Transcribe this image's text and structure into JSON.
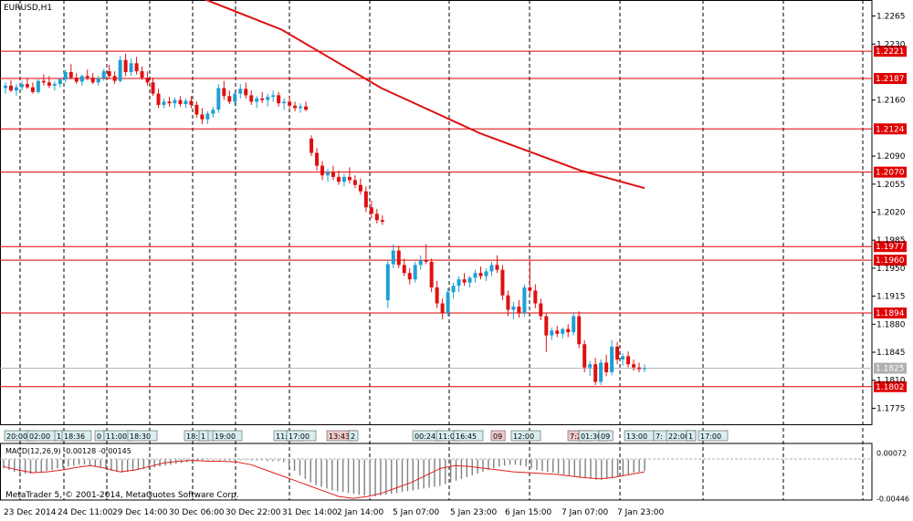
{
  "symbol_label": "EURUSD,H1",
  "macd_label": "MACD(12,26,9) -0.00128 -0.00145",
  "copyright": "MetaTrader 5, © 2001-2014, MetaQuotes Software Corp.",
  "colors": {
    "bull": "#1ea0d4",
    "bear": "#e01010",
    "level": "#e00000",
    "ma": "#dd1111",
    "grid": "#000000",
    "current": "#b0b0b0"
  },
  "chart_data": [
    {
      "type": "candlestick",
      "title": "",
      "ylim": [
        1.1755,
        1.2285
      ],
      "y_ticks": [
        "1.2265",
        "1.2230",
        "1.2160",
        "1.2090",
        "1.2055",
        "1.2020",
        "1.1985",
        "1.1950",
        "1.1915",
        "1.1880",
        "1.1845",
        "1.1810",
        "1.1775"
      ],
      "y_tick_values": [
        1.2265,
        1.223,
        1.216,
        1.209,
        1.2055,
        1.202,
        1.1985,
        1.195,
        1.1915,
        1.188,
        1.1845,
        1.181,
        1.1775
      ],
      "x_ticks": [
        "23 Dec 2014",
        "24 Dec 11:00",
        "29 Dec 14:00",
        "30 Dec 06:00",
        "30 Dec 22:00",
        "31 Dec 14:00",
        "2 Jan 14:00",
        "5 Jan 07:00",
        "5 Jan 23:00",
        "6 Jan 15:00",
        "7 Jan 07:00",
        "7 Jan 23:00"
      ],
      "levels": [
        {
          "value": 1.2221,
          "label": "1.2221"
        },
        {
          "value": 1.2187,
          "label": "1.2187"
        },
        {
          "value": 1.2124,
          "label": "1.2124"
        },
        {
          "value": 1.207,
          "label": "1.2070"
        },
        {
          "value": 1.1977,
          "label": "1.1977"
        },
        {
          "value": 1.196,
          "label": "1.1960"
        },
        {
          "value": 1.1894,
          "label": "1.1894"
        },
        {
          "value": 1.1802,
          "label": "1.1802"
        }
      ],
      "current_price": {
        "value": 1.1825,
        "label": "1.1825"
      },
      "moving_average": [
        {
          "i": 0,
          "v": 1.229
        },
        {
          "i": 60,
          "v": 1.2248
        },
        {
          "i": 130,
          "v": 1.2175
        },
        {
          "i": 200,
          "v": 1.2118
        },
        {
          "i": 270,
          "v": 1.2072
        },
        {
          "i": 315,
          "v": 1.205
        }
      ],
      "ohlc": [
        [
          1.2175,
          1.2182,
          1.2168,
          1.2178
        ],
        [
          1.2178,
          1.2185,
          1.217,
          1.2172
        ],
        [
          1.2172,
          1.218,
          1.2165,
          1.2176
        ],
        [
          1.2176,
          1.2184,
          1.2172,
          1.218
        ],
        [
          1.218,
          1.2188,
          1.2174,
          1.2176
        ],
        [
          1.2176,
          1.2182,
          1.2168,
          1.217
        ],
        [
          1.217,
          1.2186,
          1.2168,
          1.2184
        ],
        [
          1.2184,
          1.2192,
          1.2178,
          1.2182
        ],
        [
          1.2182,
          1.219,
          1.2175,
          1.2178
        ],
        [
          1.2178,
          1.2184,
          1.2172,
          1.218
        ],
        [
          1.218,
          1.2188,
          1.2176,
          1.2186
        ],
        [
          1.2186,
          1.2198,
          1.2182,
          1.2195
        ],
        [
          1.2195,
          1.2205,
          1.2186,
          1.2188
        ],
        [
          1.2188,
          1.2194,
          1.218,
          1.2183
        ],
        [
          1.2183,
          1.2192,
          1.2178,
          1.219
        ],
        [
          1.219,
          1.2198,
          1.2185,
          1.2188
        ],
        [
          1.2188,
          1.2194,
          1.218,
          1.2182
        ],
        [
          1.2182,
          1.219,
          1.2178,
          1.2187
        ],
        [
          1.2187,
          1.2199,
          1.2184,
          1.2196
        ],
        [
          1.2196,
          1.2204,
          1.2186,
          1.219
        ],
        [
          1.219,
          1.2196,
          1.218,
          1.2184
        ],
        [
          1.2184,
          1.2215,
          1.2182,
          1.221
        ],
        [
          1.221,
          1.2218,
          1.219,
          1.2195
        ],
        [
          1.2195,
          1.2212,
          1.219,
          1.2206
        ],
        [
          1.2206,
          1.2214,
          1.2192,
          1.2196
        ],
        [
          1.2196,
          1.2202,
          1.2185,
          1.2188
        ],
        [
          1.2188,
          1.2196,
          1.2178,
          1.2182
        ],
        [
          1.2182,
          1.2188,
          1.2165,
          1.2168
        ],
        [
          1.2168,
          1.2174,
          1.215,
          1.2154
        ],
        [
          1.2154,
          1.2162,
          1.215,
          1.2158
        ],
        [
          1.2158,
          1.2164,
          1.2152,
          1.2156
        ],
        [
          1.2156,
          1.2163,
          1.215,
          1.216
        ],
        [
          1.216,
          1.2165,
          1.2152,
          1.2155
        ],
        [
          1.2155,
          1.2162,
          1.215,
          1.2159
        ],
        [
          1.2159,
          1.2165,
          1.215,
          1.2154
        ],
        [
          1.2154,
          1.2158,
          1.2138,
          1.2142
        ],
        [
          1.2142,
          1.215,
          1.213,
          1.2136
        ],
        [
          1.2136,
          1.2146,
          1.213,
          1.2143
        ],
        [
          1.2143,
          1.2152,
          1.2138,
          1.2148
        ],
        [
          1.2148,
          1.218,
          1.2144,
          1.2175
        ],
        [
          1.2175,
          1.2184,
          1.216,
          1.2165
        ],
        [
          1.2165,
          1.2172,
          1.2155,
          1.2158
        ],
        [
          1.2158,
          1.217,
          1.2152,
          1.2168
        ],
        [
          1.2168,
          1.218,
          1.2162,
          1.2174
        ],
        [
          1.2174,
          1.2182,
          1.2162,
          1.2166
        ],
        [
          1.2166,
          1.2172,
          1.2154,
          1.2158
        ],
        [
          1.2158,
          1.2165,
          1.215,
          1.2162
        ],
        [
          1.2162,
          1.217,
          1.2156,
          1.216
        ],
        [
          1.216,
          1.2168,
          1.2152,
          1.2164
        ],
        [
          1.2164,
          1.2172,
          1.2158,
          1.2166
        ],
        [
          1.2166,
          1.217,
          1.2152,
          1.2156
        ],
        [
          1.2156,
          1.2162,
          1.2148,
          1.2158
        ],
        [
          1.2158,
          1.2164,
          1.215,
          1.2153
        ],
        [
          1.2153,
          1.2158,
          1.2146,
          1.215
        ],
        [
          1.215,
          1.2156,
          1.2144,
          1.2152
        ],
        [
          1.2152,
          1.2158,
          1.2146,
          1.2148
        ],
        [
          1.2112,
          1.2116,
          1.209,
          1.2094
        ],
        [
          1.2094,
          1.21,
          1.2072,
          1.2078
        ],
        [
          1.2078,
          1.2084,
          1.206,
          1.2066
        ],
        [
          1.2066,
          1.2074,
          1.2058,
          1.207
        ],
        [
          1.207,
          1.2078,
          1.206,
          1.2064
        ],
        [
          1.2064,
          1.2072,
          1.2054,
          1.2058
        ],
        [
          1.2058,
          1.2068,
          1.2052,
          1.2064
        ],
        [
          1.2064,
          1.2076,
          1.2056,
          1.206
        ],
        [
          1.206,
          1.2066,
          1.205,
          1.2054
        ],
        [
          1.2054,
          1.2062,
          1.2042,
          1.2046
        ],
        [
          1.2046,
          1.2052,
          1.202,
          1.2026
        ],
        [
          1.2026,
          1.2034,
          1.2012,
          1.2018
        ],
        [
          1.2018,
          1.2024,
          1.2006,
          1.201
        ],
        [
          1.201,
          1.2016,
          1.2004,
          1.2008
        ],
        [
          1.191,
          1.196,
          1.19,
          1.1955
        ],
        [
          1.1955,
          1.198,
          1.195,
          1.1972
        ],
        [
          1.1972,
          1.1978,
          1.195,
          1.1954
        ],
        [
          1.1954,
          1.1962,
          1.194,
          1.1944
        ],
        [
          1.1944,
          1.195,
          1.193,
          1.1936
        ],
        [
          1.1936,
          1.1958,
          1.1932,
          1.1954
        ],
        [
          1.1954,
          1.1966,
          1.1948,
          1.196
        ],
        [
          1.196,
          1.198,
          1.1955,
          1.1958
        ],
        [
          1.1958,
          1.1962,
          1.192,
          1.1926
        ],
        [
          1.1926,
          1.1934,
          1.19,
          1.1906
        ],
        [
          1.1906,
          1.1912,
          1.1886,
          1.1894
        ],
        [
          1.1894,
          1.1925,
          1.189,
          1.192
        ],
        [
          1.192,
          1.1932,
          1.1912,
          1.1928
        ],
        [
          1.1928,
          1.194,
          1.192,
          1.1936
        ],
        [
          1.1936,
          1.1944,
          1.1928,
          1.1932
        ],
        [
          1.1932,
          1.194,
          1.1926,
          1.1938
        ],
        [
          1.1938,
          1.1948,
          1.1932,
          1.1944
        ],
        [
          1.1944,
          1.1952,
          1.1936,
          1.194
        ],
        [
          1.194,
          1.195,
          1.1934,
          1.1946
        ],
        [
          1.1946,
          1.1958,
          1.194,
          1.1954
        ],
        [
          1.1954,
          1.1966,
          1.1944,
          1.1948
        ],
        [
          1.1948,
          1.1954,
          1.191,
          1.1916
        ],
        [
          1.1916,
          1.1922,
          1.189,
          1.1898
        ],
        [
          1.1898,
          1.1908,
          1.1886,
          1.1902
        ],
        [
          1.1902,
          1.191,
          1.1888,
          1.1894
        ],
        [
          1.1894,
          1.193,
          1.189,
          1.1926
        ],
        [
          1.1926,
          1.196,
          1.1918,
          1.1922
        ],
        [
          1.1922,
          1.193,
          1.19,
          1.1906
        ],
        [
          1.1906,
          1.1912,
          1.1885,
          1.189
        ],
        [
          1.189,
          1.1894,
          1.1845,
          1.1866
        ],
        [
          1.1866,
          1.1876,
          1.186,
          1.1872
        ],
        [
          1.1872,
          1.1878,
          1.1864,
          1.1868
        ],
        [
          1.1868,
          1.1876,
          1.1862,
          1.1874
        ],
        [
          1.1874,
          1.188,
          1.1864,
          1.187
        ],
        [
          1.187,
          1.1895,
          1.1866,
          1.189
        ],
        [
          1.189,
          1.1896,
          1.185,
          1.1855
        ],
        [
          1.1855,
          1.186,
          1.182,
          1.1826
        ],
        [
          1.1826,
          1.1834,
          1.1815,
          1.183
        ],
        [
          1.183,
          1.1838,
          1.1804,
          1.1808
        ],
        [
          1.1808,
          1.1836,
          1.1804,
          1.1832
        ],
        [
          1.1832,
          1.1842,
          1.1815,
          1.182
        ],
        [
          1.182,
          1.186,
          1.1816,
          1.1852
        ],
        [
          1.1852,
          1.1858,
          1.183,
          1.1836
        ],
        [
          1.1836,
          1.1844,
          1.1828,
          1.184
        ],
        [
          1.184,
          1.1846,
          1.1826,
          1.183
        ],
        [
          1.183,
          1.1836,
          1.1822,
          1.1826
        ],
        [
          1.1826,
          1.1832,
          1.182,
          1.1824
        ],
        [
          1.1824,
          1.183,
          1.182,
          1.1825
        ]
      ]
    },
    {
      "type": "bar",
      "title": "MACD(12,26,9)",
      "ylim": [
        -0.0046,
        0.0014
      ],
      "y_ticks": [
        "0.00072",
        "-0.00446"
      ],
      "y_tick_values": [
        0.00072,
        -0.00446
      ],
      "histogram": [
        -0.001,
        -0.0012,
        -0.0014,
        -0.0015,
        -0.0016,
        -0.0016,
        -0.0015,
        -0.0014,
        -0.0013,
        -0.0012,
        -0.001,
        -0.0009,
        -0.0008,
        -0.0007,
        -0.0006,
        -0.0006,
        -0.0007,
        -0.0008,
        -0.0009,
        -0.0011,
        -0.0013,
        -0.0014,
        -0.0015,
        -0.0014,
        -0.0013,
        -0.0012,
        -0.0011,
        -0.001,
        -0.0009,
        -0.0008,
        -0.0007,
        -0.0006,
        -0.0005,
        -0.0004,
        -0.0003,
        -0.0002,
        -0.0002,
        -0.0001,
        -0.0001,
        -0.0001,
        -0.0001,
        -0.0001,
        -0.0001,
        -0.0001,
        -0.0001,
        -0.0001,
        -0.0001,
        -0.0001,
        -0.0001,
        -0.0002,
        -0.0002,
        -0.0002,
        -0.0003,
        -0.0008,
        -0.0013,
        -0.0018,
        -0.0022,
        -0.0026,
        -0.0029,
        -0.0031,
        -0.0033,
        -0.0035,
        -0.0036,
        -0.0037,
        -0.0038,
        -0.0039,
        -0.004,
        -0.0041,
        -0.0042,
        -0.0042,
        -0.0041,
        -0.004,
        -0.0039,
        -0.0038,
        -0.0037,
        -0.0036,
        -0.0035,
        -0.0034,
        -0.0033,
        -0.0032,
        -0.0031,
        -0.003,
        -0.0028,
        -0.0026,
        -0.0024,
        -0.0022,
        -0.002,
        -0.0018,
        -0.0016,
        -0.0014,
        -0.0012,
        -0.001,
        -0.0008,
        -0.0007,
        -0.0006,
        -0.0006,
        -0.0007,
        -0.0008,
        -0.001,
        -0.0012,
        -0.0013,
        -0.0014,
        -0.0015,
        -0.0016,
        -0.0017,
        -0.0018,
        -0.0019,
        -0.002,
        -0.0021,
        -0.0022,
        -0.0023,
        -0.0023,
        -0.0022,
        -0.0021,
        -0.002,
        -0.0019,
        -0.0017,
        -0.0015,
        -0.0014,
        -0.0013
      ],
      "signal": [
        -0.0008,
        -0.0012,
        -0.0015,
        -0.0014,
        -0.0012,
        -0.0009,
        -0.0007,
        -0.001,
        -0.0014,
        -0.0012,
        -0.0008,
        -0.0004,
        -0.0002,
        -0.0001,
        -0.0002,
        -0.0002,
        -0.0003,
        -0.0006,
        -0.0012,
        -0.0018,
        -0.0024,
        -0.003,
        -0.0036,
        -0.0042,
        -0.0044,
        -0.0042,
        -0.0038,
        -0.0032,
        -0.0026,
        -0.0018,
        -0.001,
        -0.0007,
        -0.0008,
        -0.001,
        -0.0012,
        -0.0014,
        -0.0015,
        -0.0016,
        -0.0017,
        -0.0019,
        -0.0021,
        -0.0022,
        -0.002,
        -0.0017,
        -0.0014
      ]
    }
  ],
  "time_tags": [
    {
      "label": "20:00",
      "red": false
    },
    {
      "label": "02:00",
      "red": false
    },
    {
      "label": "1",
      "red": false
    },
    {
      "label": "18:36",
      "red": false
    },
    {
      "label": "0",
      "red": false
    },
    {
      "label": "11:00",
      "red": false
    },
    {
      "label": "18:30",
      "red": false
    },
    {
      "label": "18:30",
      "red": false
    },
    {
      "label": "1",
      "red": false
    },
    {
      "label": "19:00",
      "red": false
    },
    {
      "label": "11:00",
      "red": false
    },
    {
      "label": "17:00",
      "red": false
    },
    {
      "label": "13:43",
      "red": true
    },
    {
      "label": "2",
      "red": false
    },
    {
      "label": "00:24",
      "red": false
    },
    {
      "label": "11:0",
      "red": false
    },
    {
      "label": "16:45",
      "red": false
    },
    {
      "label": "09",
      "red": true
    },
    {
      "label": "12:00",
      "red": false
    },
    {
      "label": "7:20",
      "red": true
    },
    {
      "label": "01:30",
      "red": false
    },
    {
      "label": "09",
      "red": false
    },
    {
      "label": "13:00",
      "red": false
    },
    {
      "label": "7:",
      "red": false
    },
    {
      "label": "22:00",
      "red": false
    },
    {
      "label": "1",
      "red": false
    },
    {
      "label": "17:00",
      "red": false
    }
  ]
}
